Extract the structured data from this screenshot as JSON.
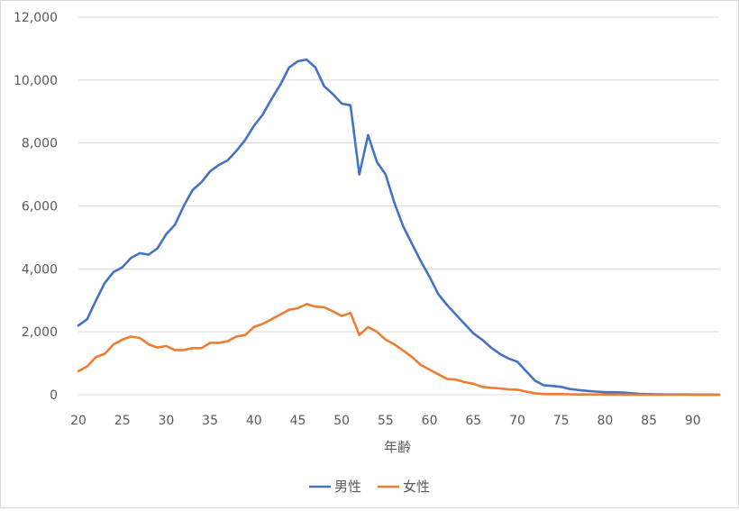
{
  "chart_data": {
    "type": "line",
    "title": "",
    "xlabel": "年齢",
    "ylabel": "",
    "xlim": [
      20,
      93
    ],
    "ylim": [
      0,
      12000
    ],
    "x_ticks": [
      20,
      25,
      30,
      35,
      40,
      45,
      50,
      55,
      60,
      65,
      70,
      75,
      80,
      85,
      90
    ],
    "x_tick_labels": [
      "20",
      "25",
      "30",
      "35",
      "40",
      "45",
      "50",
      "55",
      "60",
      "65",
      "70",
      "75",
      "80",
      "85",
      "90"
    ],
    "y_ticks": [
      0,
      2000,
      4000,
      6000,
      8000,
      10000,
      12000
    ],
    "y_tick_labels": [
      "0",
      "2,000",
      "4,000",
      "6,000",
      "8,000",
      "10,000",
      "12,000"
    ],
    "grid": "horizontal",
    "legend_position": "bottom",
    "x": [
      20,
      21,
      22,
      23,
      24,
      25,
      26,
      27,
      28,
      29,
      30,
      31,
      32,
      33,
      34,
      35,
      36,
      37,
      38,
      39,
      40,
      41,
      42,
      43,
      44,
      45,
      46,
      47,
      48,
      49,
      50,
      51,
      52,
      53,
      54,
      55,
      56,
      57,
      58,
      59,
      60,
      61,
      62,
      63,
      64,
      65,
      66,
      67,
      68,
      69,
      70,
      71,
      72,
      73,
      74,
      75,
      76,
      77,
      78,
      79,
      80,
      81,
      82,
      83,
      84,
      85,
      86,
      87,
      88,
      89,
      90,
      91,
      92,
      93
    ],
    "series": [
      {
        "name": "男性",
        "color": "#4472c4",
        "values": [
          2200,
          2400,
          3000,
          3550,
          3900,
          4050,
          4350,
          4500,
          4450,
          4650,
          5100,
          5400,
          6000,
          6500,
          6750,
          7100,
          7300,
          7450,
          7750,
          8100,
          8550,
          8900,
          9400,
          9850,
          10400,
          10600,
          10650,
          10400,
          9800,
          9550,
          9250,
          9200,
          7000,
          8250,
          7400,
          7000,
          6100,
          5350,
          4800,
          4250,
          3750,
          3200,
          2850,
          2550,
          2250,
          1950,
          1750,
          1500,
          1300,
          1150,
          1050,
          750,
          450,
          300,
          280,
          250,
          180,
          150,
          120,
          100,
          80,
          80,
          70,
          50,
          30,
          20,
          15,
          10,
          10,
          8,
          5,
          5,
          3,
          2
        ]
      },
      {
        "name": "女性",
        "color": "#ed7d31",
        "values": [
          750,
          900,
          1200,
          1300,
          1600,
          1750,
          1850,
          1800,
          1600,
          1500,
          1550,
          1420,
          1420,
          1480,
          1480,
          1650,
          1650,
          1700,
          1850,
          1900,
          2150,
          2250,
          2400,
          2550,
          2700,
          2750,
          2880,
          2800,
          2780,
          2650,
          2500,
          2600,
          1900,
          2150,
          2000,
          1750,
          1600,
          1400,
          1200,
          950,
          800,
          650,
          500,
          480,
          400,
          350,
          250,
          220,
          200,
          170,
          160,
          100,
          50,
          20,
          20,
          20,
          15,
          10,
          10,
          8,
          5,
          5,
          3,
          3,
          2,
          2,
          1,
          1,
          1,
          1,
          0,
          0,
          0,
          0
        ]
      }
    ]
  }
}
